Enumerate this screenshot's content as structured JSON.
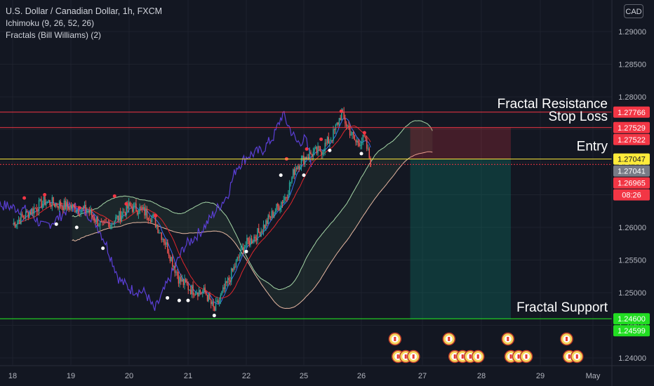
{
  "header": {
    "symbol": "U.S. Dollar / Canadian Dollar, 1h, FXCM",
    "indicator1": "Ichimoku (9, 26, 52, 26)",
    "indicator2": "Fractals (Bill Williams) (2)",
    "currency": "CAD"
  },
  "colors": {
    "background": "#131722",
    "up": "#26a69a",
    "down": "#ef5350",
    "resistance": "#f23645",
    "support": "#22dd22",
    "entry": "#ffeb3b",
    "conversion": "#5b3fd6",
    "base": "#e0262d",
    "lagging": "#3a6cf0",
    "spanA": "#a5d6a7",
    "spanB": "#e6b8a2"
  },
  "annotations": {
    "fractal_resistance": "Fractal Resistance",
    "stop_loss": "Stop Loss",
    "entry": "Entry",
    "fractal_support": "Fractal Support"
  },
  "chart_data": {
    "type": "candlestick",
    "price_axis_ticks": [
      "1.29000",
      "1.28500",
      "1.28000",
      "1.27500",
      "1.27000",
      "1.26500",
      "1.26000",
      "1.25500",
      "1.25000",
      "1.24500",
      "1.24000"
    ],
    "time_axis_ticks": [
      "18",
      "19",
      "20",
      "21",
      "22",
      "25",
      "26",
      "27",
      "28",
      "29",
      "May"
    ],
    "ylim": [
      1.2388,
      1.2927
    ],
    "price_labels": [
      {
        "text": "1.27766",
        "color": "#f23645",
        "value": 1.27766
      },
      {
        "text": "1.27529",
        "color": "#f23645",
        "value": 1.27529
      },
      {
        "text": "1.27522",
        "color": "#f23645",
        "value": 1.27522
      },
      {
        "text": "1.27047",
        "color": "#ffeb3b",
        "value": 1.27047
      },
      {
        "text": "1.27041",
        "color": "#787b86",
        "value": 1.27041
      },
      {
        "text": "1.26965",
        "color": "#f23645",
        "value": 1.26965
      },
      {
        "text": "08:26",
        "color": "#f23645",
        "value": 1.26965
      },
      {
        "text": "1.24600",
        "color": "#22dd22",
        "value": 1.246
      },
      {
        "text": "1.24599",
        "color": "#22dd22",
        "value": 1.24599
      }
    ],
    "levels": {
      "fractal_resistance": 1.27766,
      "stop_loss": 1.27529,
      "entry": 1.27047,
      "current": 1.26965,
      "fractal_support": 1.246
    },
    "close_path": [
      [
        0,
        1.2605
      ],
      [
        0.55,
        1.264
      ],
      [
        1.3,
        1.2625
      ],
      [
        1.55,
        1.26
      ],
      [
        1.8,
        1.2614
      ],
      [
        2.0,
        1.2632
      ],
      [
        2.2,
        1.2627
      ],
      [
        2.4,
        1.2615
      ],
      [
        2.6,
        1.258
      ],
      [
        2.85,
        1.252
      ],
      [
        3.05,
        1.2505
      ],
      [
        3.3,
        1.25
      ],
      [
        3.45,
        1.2472
      ],
      [
        3.7,
        1.252
      ],
      [
        3.95,
        1.257
      ],
      [
        4.25,
        1.2595
      ],
      [
        4.45,
        1.262
      ],
      [
        4.7,
        1.265
      ],
      [
        4.85,
        1.2692
      ],
      [
        5.05,
        1.271
      ],
      [
        5.3,
        1.2718
      ],
      [
        5.5,
        1.274
      ],
      [
        5.65,
        1.2774
      ],
      [
        5.9,
        1.273
      ],
      [
        6.05,
        1.2735
      ],
      [
        6.15,
        1.27
      ]
    ],
    "fractal_up_markers": [
      [
        0.2,
        1.2645
      ],
      [
        0.55,
        1.265
      ],
      [
        1.15,
        1.263
      ],
      [
        1.75,
        1.2648
      ],
      [
        1.95,
        1.2636
      ],
      [
        2.45,
        1.2618
      ],
      [
        4.7,
        1.2705
      ],
      [
        5.05,
        1.272
      ],
      [
        5.3,
        1.2735
      ],
      [
        5.65,
        1.2778
      ],
      [
        6.05,
        1.2745
      ]
    ],
    "fractal_down_markers": [
      [
        0.75,
        1.2605
      ],
      [
        1.1,
        1.26
      ],
      [
        1.55,
        1.2568
      ],
      [
        2.65,
        1.2492
      ],
      [
        2.85,
        1.2488
      ],
      [
        3.0,
        1.2488
      ],
      [
        3.45,
        1.2465
      ],
      [
        4.0,
        1.2563
      ],
      [
        4.6,
        1.268
      ],
      [
        5.0,
        1.268
      ],
      [
        5.45,
        1.2718
      ],
      [
        6.0,
        1.2713
      ]
    ],
    "trade": {
      "entry_x": 6.8,
      "exit_x": 8.5
    },
    "calendar_icons": [
      {
        "day": 6.55,
        "row": 0,
        "count": 1
      },
      {
        "day": 6.6,
        "row": 1,
        "count": 3
      },
      {
        "day": 7.45,
        "row": 0,
        "count": 1
      },
      {
        "day": 7.55,
        "row": 1,
        "count": 4
      },
      {
        "day": 8.45,
        "row": 0,
        "count": 1
      },
      {
        "day": 8.5,
        "row": 1,
        "count": 3
      },
      {
        "day": 9.5,
        "row": 0,
        "count": 1
      },
      {
        "day": 9.55,
        "row": 1,
        "count": 2
      }
    ]
  }
}
